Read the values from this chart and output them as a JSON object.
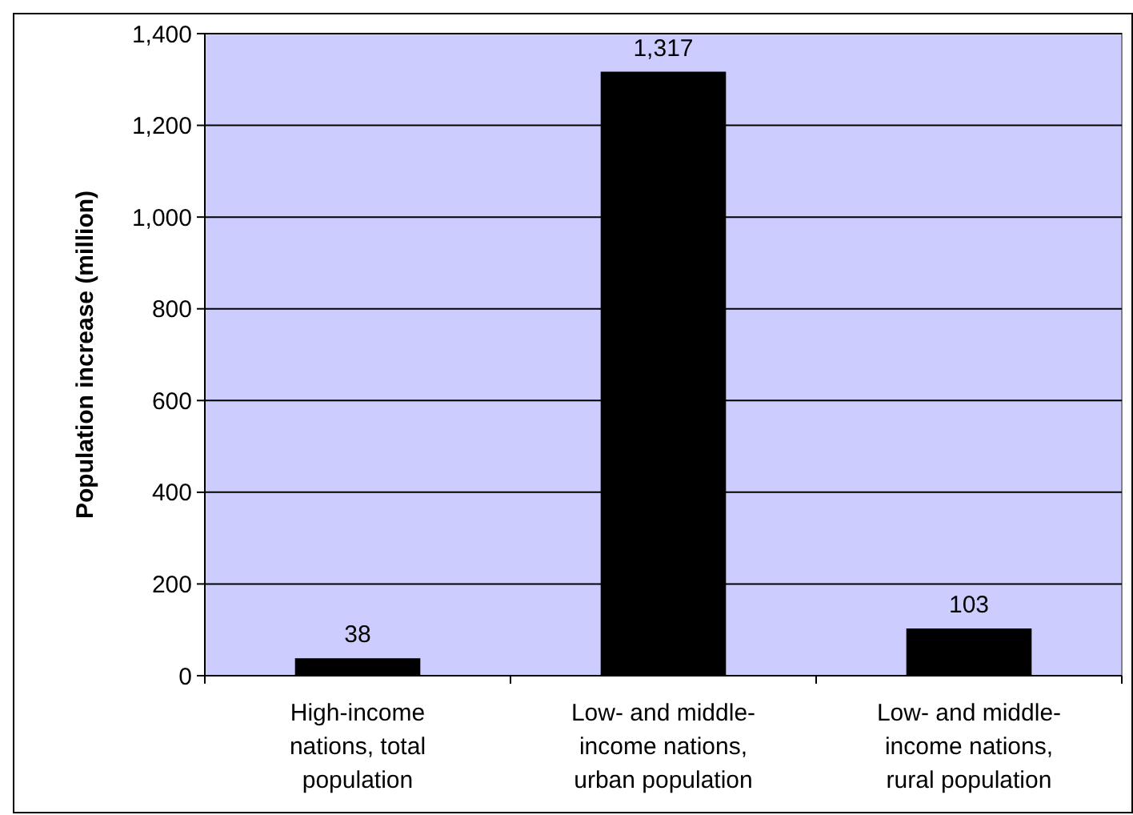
{
  "chart_data": {
    "type": "bar",
    "ylabel": "Population increase (million)",
    "categories": [
      "High-income nations, total population",
      "Low- and middle-income nations, urban population",
      "Low- and middle-income nations, rural population"
    ],
    "values": [
      38,
      1317,
      103
    ],
    "color": "#000000",
    "value_labels": [
      "38",
      "1,317",
      "103"
    ],
    "ylim": [
      0,
      1400
    ],
    "yticks": [
      0,
      {
        "value": 200,
        "label": "200"
      },
      {
        "value": 400,
        "label": "400"
      },
      {
        "value": 600,
        "label": "600"
      },
      {
        "value": 800,
        "label": "800"
      },
      {
        "value": 1000,
        "label": "1,000"
      },
      {
        "value": 1200,
        "label": "1,200"
      },
      {
        "value": 1400,
        "label": "1,400"
      }
    ],
    "grid": "y"
  }
}
